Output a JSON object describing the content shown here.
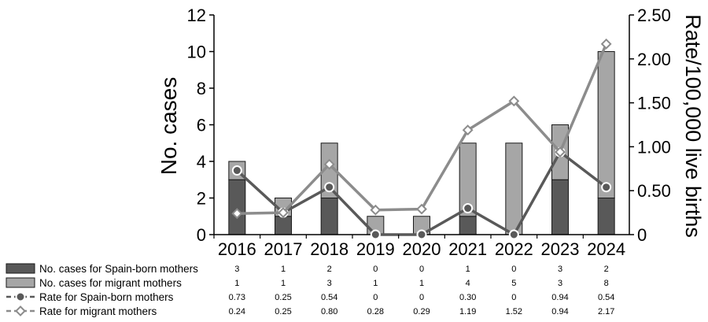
{
  "chart_data": {
    "type": "bar",
    "categories": [
      "2016",
      "2017",
      "2018",
      "2019",
      "2020",
      "2021",
      "2022",
      "2023",
      "2024"
    ],
    "ylabel": "No. cases",
    "y2label": "Rate/100,000 live births",
    "ylim": [
      0,
      12
    ],
    "yticks": [
      "0",
      "2",
      "4",
      "6",
      "8",
      "10",
      "12"
    ],
    "y2lim": [
      0,
      2.5
    ],
    "y2ticks": [
      "0",
      "0.50",
      "1.00",
      "1.50",
      "2.00",
      "2.50"
    ],
    "grid": false,
    "stacked": true,
    "series": [
      {
        "name": "No. cases for Spain-born mothers",
        "kind": "bar",
        "axis": "left",
        "color": "#595959",
        "values": [
          3,
          1,
          2,
          0,
          0,
          1,
          0,
          3,
          2
        ],
        "labels": [
          "3",
          "1",
          "2",
          "0",
          "0",
          "1",
          "0",
          "3",
          "2"
        ]
      },
      {
        "name": "No. cases for migrant mothers",
        "kind": "bar",
        "axis": "left",
        "color": "#a6a6a6",
        "values": [
          1,
          1,
          3,
          1,
          1,
          4,
          5,
          3,
          8
        ],
        "labels": [
          "1",
          "1",
          "3",
          "1",
          "1",
          "4",
          "5",
          "3",
          "8"
        ]
      },
      {
        "name": "Rate for Spain-born mothers",
        "kind": "line",
        "axis": "right",
        "color": "#595959",
        "marker": "circle",
        "values": [
          0.73,
          0.25,
          0.54,
          0,
          0,
          0.3,
          0,
          0.94,
          0.54
        ],
        "labels": [
          "0.73",
          "0.25",
          "0.54",
          "0",
          "0",
          "0.30",
          "0",
          "0.94",
          "0.54"
        ]
      },
      {
        "name": "Rate for migrant mothers",
        "kind": "line",
        "axis": "right",
        "color": "#8c8c8c",
        "marker": "diamond",
        "values": [
          0.24,
          0.25,
          0.8,
          0.28,
          0.29,
          1.19,
          1.52,
          0.94,
          2.17
        ],
        "labels": [
          "0.24",
          "0.25",
          "0.80",
          "0.28",
          "0.29",
          "1.19",
          "1.52",
          "0.94",
          "2.17"
        ]
      }
    ]
  }
}
